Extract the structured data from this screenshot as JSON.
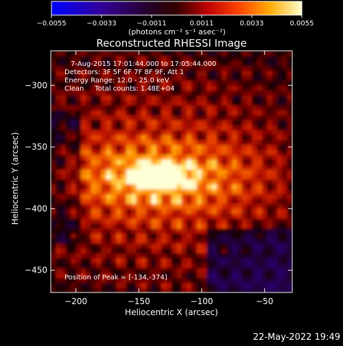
{
  "chart_data": {
    "type": "heatmap",
    "title": "Reconstructed RHESSI Image",
    "xlabel": "Heliocentric X (arcsec)",
    "ylabel": "Heliocentric Y (arcsec)",
    "xlim": [
      -220,
      -28
    ],
    "ylim": [
      -468,
      -272
    ],
    "x_ticks": [
      -200,
      -150,
      -100,
      -50
    ],
    "y_ticks": [
      -450,
      -400,
      -350,
      -300
    ],
    "x_tick_labels": [
      "−200",
      "−150",
      "−100",
      "−50"
    ],
    "y_tick_labels": [
      "−450",
      "−400",
      "−350",
      "−300"
    ],
    "colorbar": {
      "min": -0.0055,
      "max": 0.0055,
      "ticks": [
        -0.0055,
        -0.0033,
        -0.0011,
        0.0011,
        0.0033,
        0.0055
      ],
      "tick_labels": [
        "−0.0055",
        "−0.0033",
        "−0.0011",
        "0.0011",
        "0.0033",
        "0.0055"
      ],
      "label": "(photons cm⁻² s⁻¹ asec⁻²)"
    },
    "annotations": {
      "time_range": "7-Aug-2015 17:01:44.000 to 17:05:44.000",
      "detectors": "Detectors: 3F 5F 6F 7F 8F 9F, Att 1",
      "energy": "Energy Range: 12.0 - 25.0 keV",
      "method": "Clean     Total counts: 1.48E+04",
      "peak": "Position of Peak = [-134,-374]"
    },
    "peak": {
      "x": -134,
      "y": -374
    },
    "timestamp": "22-May-2022 19:49"
  },
  "colors": {
    "background": "#000000",
    "foreground": "#ffffff",
    "colormap": [
      "#0000ff",
      "#3300aa",
      "#330055",
      "#000000",
      "#aa0000",
      "#ff3300",
      "#ffaa00",
      "#ffff99",
      "#ffffff"
    ]
  }
}
